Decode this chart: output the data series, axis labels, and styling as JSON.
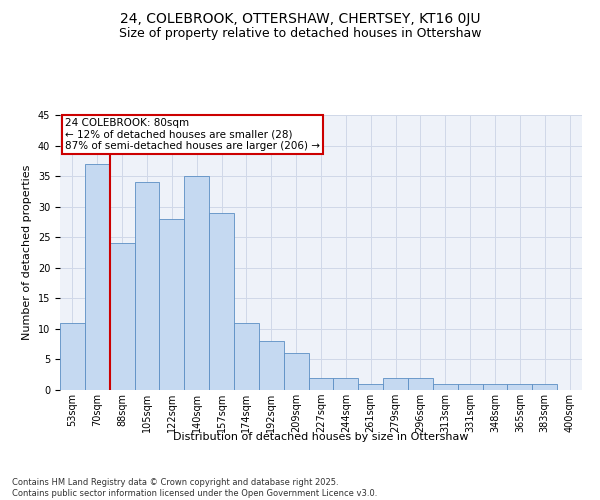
{
  "title": "24, COLEBROOK, OTTERSHAW, CHERTSEY, KT16 0JU",
  "subtitle": "Size of property relative to detached houses in Ottershaw",
  "xlabel": "Distribution of detached houses by size in Ottershaw",
  "ylabel": "Number of detached properties",
  "categories": [
    "53sqm",
    "70sqm",
    "88sqm",
    "105sqm",
    "122sqm",
    "140sqm",
    "157sqm",
    "174sqm",
    "192sqm",
    "209sqm",
    "227sqm",
    "244sqm",
    "261sqm",
    "279sqm",
    "296sqm",
    "313sqm",
    "331sqm",
    "348sqm",
    "365sqm",
    "383sqm",
    "400sqm"
  ],
  "values": [
    11,
    37,
    24,
    34,
    28,
    35,
    29,
    11,
    8,
    6,
    2,
    2,
    1,
    2,
    2,
    1,
    1,
    1,
    1,
    1,
    0
  ],
  "bar_color": "#c5d9f1",
  "bar_edge_color": "#5b8ec4",
  "vline_color": "#cc0000",
  "vline_pos": 1.5,
  "annotation_text": "24 COLEBROOK: 80sqm\n← 12% of detached houses are smaller (28)\n87% of semi-detached houses are larger (206) →",
  "annotation_box_color": "#cc0000",
  "annotation_text_color": "#000000",
  "ylim": [
    0,
    45
  ],
  "yticks": [
    0,
    5,
    10,
    15,
    20,
    25,
    30,
    35,
    40,
    45
  ],
  "grid_color": "#d0d8e8",
  "bg_color": "#eef2f9",
  "footer_text": "Contains HM Land Registry data © Crown copyright and database right 2025.\nContains public sector information licensed under the Open Government Licence v3.0.",
  "title_fontsize": 10,
  "subtitle_fontsize": 9,
  "axis_label_fontsize": 8,
  "tick_fontsize": 7,
  "annotation_fontsize": 7.5,
  "footer_fontsize": 6
}
